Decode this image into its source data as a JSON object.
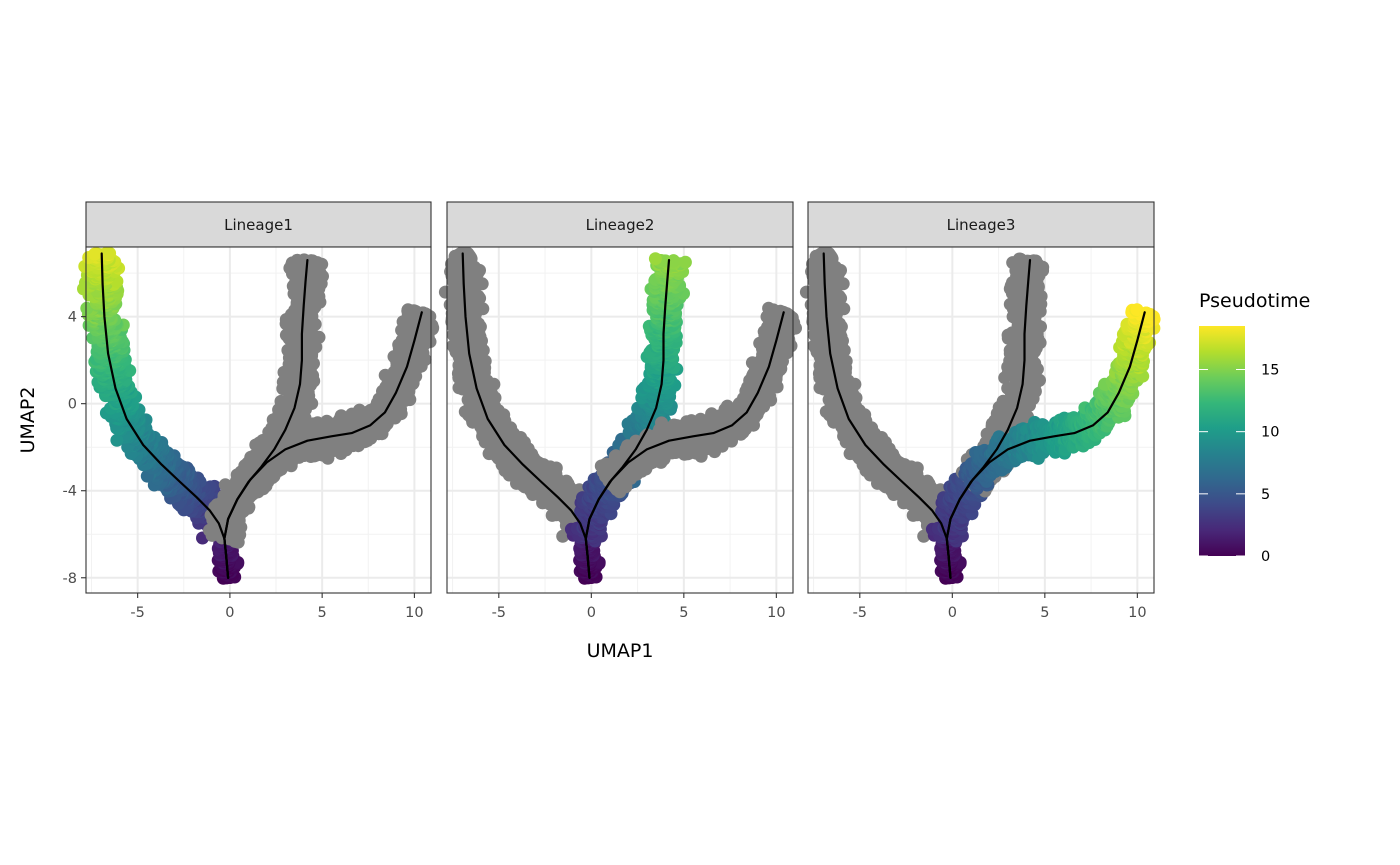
{
  "chart_data": {
    "type": "scatter",
    "xlabel": "UMAP1",
    "ylabel": "UMAP2",
    "xlim": [
      -7.8,
      10.9
    ],
    "ylim": [
      -8.7,
      7.2
    ],
    "x_ticks": [
      -5,
      0,
      5,
      10
    ],
    "x_tick_labels": [
      "-5",
      "0",
      "5",
      "10"
    ],
    "y_ticks": [
      -8,
      -4,
      0,
      4
    ],
    "y_tick_labels": [
      "-8",
      "-4",
      "0",
      "4"
    ],
    "grid": true,
    "facet_labels": [
      "Lineage1",
      "Lineage2",
      "Lineage3"
    ],
    "na_color": "#808080",
    "curve_color": "#000000",
    "legend": {
      "title": "Pseudotime",
      "position": "right",
      "colormap": "viridis",
      "range": [
        0,
        18.5
      ],
      "breaks": [
        0,
        5,
        10,
        15
      ],
      "break_labels": [
        "0",
        "5",
        "10",
        "15"
      ],
      "colors": [
        "#440154",
        "#482878",
        "#3E4A89",
        "#31688E",
        "#26828E",
        "#1F9E89",
        "#35B779",
        "#6DCD59",
        "#B4DE2C",
        "#FDE725"
      ]
    },
    "curves": [
      {
        "name": "Lineage1",
        "points": [
          [
            -0.1,
            -8.0
          ],
          [
            -0.2,
            -7.0
          ],
          [
            -0.3,
            -6.2
          ],
          [
            -0.6,
            -5.5
          ],
          [
            -1.1,
            -4.9
          ],
          [
            -1.8,
            -4.3
          ],
          [
            -2.7,
            -3.6
          ],
          [
            -3.7,
            -2.8
          ],
          [
            -4.7,
            -1.9
          ],
          [
            -5.6,
            -0.7
          ],
          [
            -6.2,
            0.7
          ],
          [
            -6.6,
            2.3
          ],
          [
            -6.8,
            4.0
          ],
          [
            -6.9,
            5.5
          ],
          [
            -6.95,
            6.9
          ]
        ]
      },
      {
        "name": "Lineage2",
        "points": [
          [
            -0.1,
            -8.0
          ],
          [
            -0.2,
            -7.0
          ],
          [
            -0.3,
            -6.2
          ],
          [
            -0.1,
            -5.3
          ],
          [
            0.4,
            -4.4
          ],
          [
            1.0,
            -3.6
          ],
          [
            1.7,
            -2.9
          ],
          [
            2.4,
            -2.1
          ],
          [
            3.0,
            -1.2
          ],
          [
            3.5,
            -0.2
          ],
          [
            3.8,
            0.9
          ],
          [
            3.9,
            2.0
          ],
          [
            3.9,
            3.2
          ],
          [
            4.0,
            4.5
          ],
          [
            4.1,
            5.6
          ],
          [
            4.2,
            6.6
          ]
        ]
      },
      {
        "name": "Lineage3",
        "points": [
          [
            -0.1,
            -8.0
          ],
          [
            -0.2,
            -7.0
          ],
          [
            -0.3,
            -6.2
          ],
          [
            -0.1,
            -5.3
          ],
          [
            0.4,
            -4.4
          ],
          [
            1.1,
            -3.5
          ],
          [
            2.0,
            -2.7
          ],
          [
            3.0,
            -2.1
          ],
          [
            4.2,
            -1.7
          ],
          [
            5.5,
            -1.5
          ],
          [
            6.6,
            -1.35
          ],
          [
            7.6,
            -1.0
          ],
          [
            8.4,
            -0.4
          ],
          [
            9.0,
            0.5
          ],
          [
            9.6,
            1.7
          ],
          [
            10.0,
            2.9
          ],
          [
            10.4,
            4.2
          ]
        ]
      }
    ],
    "branches": [
      {
        "name": "stem",
        "points": [
          [
            -0.1,
            -8.0
          ],
          [
            -0.2,
            -7.0
          ],
          [
            -0.3,
            -6.2
          ]
        ],
        "width": 0.55,
        "color_by_facet": [
          [
            0,
            1.5
          ],
          [
            0,
            1.5
          ],
          [
            0,
            1.5
          ]
        ]
      },
      {
        "name": "left arm",
        "points": [
          [
            -0.6,
            -5.5
          ],
          [
            -1.1,
            -4.9
          ],
          [
            -1.8,
            -4.3
          ],
          [
            -2.7,
            -3.6
          ],
          [
            -3.7,
            -2.8
          ],
          [
            -4.7,
            -1.9
          ],
          [
            -5.6,
            -0.7
          ],
          [
            -6.2,
            0.7
          ],
          [
            -6.6,
            2.3
          ],
          [
            -6.8,
            4.0
          ],
          [
            -6.9,
            5.5
          ],
          [
            -6.95,
            6.9
          ]
        ],
        "width": 0.95,
        "color_by_facet": [
          [
            2.5,
            17.5
          ],
          null,
          null
        ]
      },
      {
        "name": "center trunk",
        "points": [
          [
            -0.3,
            -6.2
          ],
          [
            -0.1,
            -5.3
          ],
          [
            0.4,
            -4.4
          ],
          [
            1.0,
            -3.6
          ]
        ],
        "width": 0.9,
        "color_by_facet": [
          null,
          [
            2.5,
            4.5
          ],
          [
            2.5,
            4.5
          ]
        ]
      },
      {
        "name": "middle arm",
        "points": [
          [
            1.0,
            -3.6
          ],
          [
            1.7,
            -2.9
          ],
          [
            2.4,
            -2.1
          ],
          [
            3.0,
            -1.2
          ],
          [
            3.5,
            -0.2
          ],
          [
            3.8,
            0.9
          ],
          [
            3.9,
            2.0
          ],
          [
            3.9,
            3.2
          ],
          [
            4.0,
            4.5
          ],
          [
            4.1,
            5.6
          ],
          [
            4.2,
            6.6
          ]
        ],
        "width": 0.9,
        "color_by_facet": [
          null,
          [
            5,
            15.5
          ],
          null
        ]
      },
      {
        "name": "right arm",
        "points": [
          [
            1.0,
            -3.6
          ],
          [
            2.0,
            -2.7
          ],
          [
            3.0,
            -2.1
          ],
          [
            4.2,
            -1.7
          ],
          [
            5.5,
            -1.5
          ],
          [
            6.6,
            -1.35
          ],
          [
            7.6,
            -1.0
          ],
          [
            8.4,
            -0.4
          ],
          [
            9.0,
            0.5
          ],
          [
            9.6,
            1.7
          ],
          [
            10.0,
            2.9
          ],
          [
            10.4,
            4.2
          ]
        ],
        "width": 0.85,
        "color_by_facet": [
          null,
          null,
          [
            5,
            18.5
          ]
        ]
      }
    ]
  }
}
